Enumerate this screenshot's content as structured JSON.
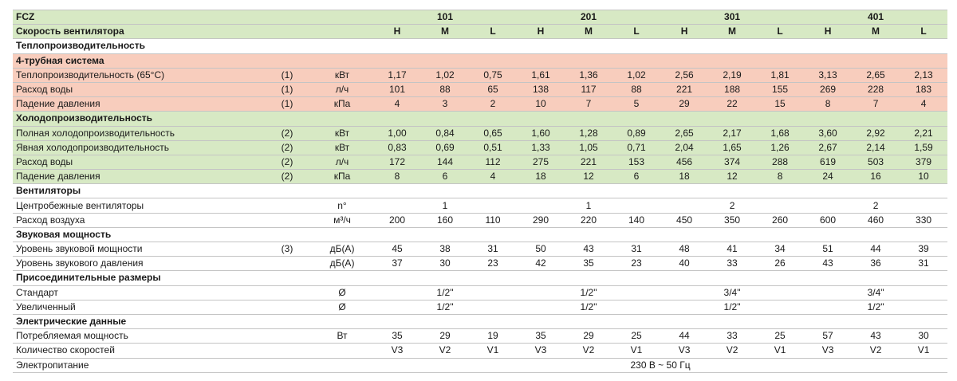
{
  "header": {
    "title": "FCZ",
    "models": [
      "101",
      "201",
      "301",
      "401"
    ],
    "speed_label": "Скорость вентилятора",
    "speeds": [
      "H",
      "M",
      "L",
      "H",
      "M",
      "L",
      "H",
      "M",
      "L",
      "H",
      "M",
      "L"
    ],
    "color": "#d7e9c4"
  },
  "rows": [
    {
      "section": "Теплопроизводительность"
    },
    {
      "section": "4-трубная система",
      "color": "#f8cdbd"
    },
    {
      "label": "Теплопроизводительность (65°C)",
      "note": "(1)",
      "unit": "кВт",
      "values": [
        "1,17",
        "1,02",
        "0,75",
        "1,61",
        "1,36",
        "1,02",
        "2,56",
        "2,19",
        "1,81",
        "3,13",
        "2,65",
        "2,13"
      ],
      "color": "#f8cdbd"
    },
    {
      "label": "Расход воды",
      "note": "(1)",
      "unit": "л/ч",
      "values": [
        101,
        88,
        65,
        138,
        117,
        88,
        221,
        188,
        155,
        269,
        228,
        183
      ],
      "color": "#f8cdbd"
    },
    {
      "label": "Падение давления",
      "note": "(1)",
      "unit": "кПа",
      "values": [
        4,
        3,
        2,
        10,
        7,
        5,
        29,
        22,
        15,
        8,
        7,
        4
      ],
      "color": "#f8cdbd"
    },
    {
      "section": "Холодопроизводительность",
      "color": "#d7e9c4"
    },
    {
      "label": "Полная холодопроизводительность",
      "note": "(2)",
      "unit": "кВт",
      "values": [
        "1,00",
        "0,84",
        "0,65",
        "1,60",
        "1,28",
        "0,89",
        "2,65",
        "2,17",
        "1,68",
        "3,60",
        "2,92",
        "2,21"
      ],
      "color": "#d7e9c4"
    },
    {
      "label": "Явная холодопроизводительность",
      "note": "(2)",
      "unit": "кВт",
      "values": [
        "0,83",
        "0,69",
        "0,51",
        "1,33",
        "1,05",
        "0,71",
        "2,04",
        "1,65",
        "1,26",
        "2,67",
        "2,14",
        "1,59"
      ],
      "color": "#d7e9c4"
    },
    {
      "label": "Расход воды",
      "note": "(2)",
      "unit": "л/ч",
      "values": [
        172,
        144,
        112,
        275,
        221,
        153,
        456,
        374,
        288,
        619,
        503,
        379
      ],
      "color": "#d7e9c4"
    },
    {
      "label": "Падение давления",
      "note": "(2)",
      "unit": "кПа",
      "values": [
        8,
        6,
        4,
        18,
        12,
        6,
        18,
        12,
        8,
        24,
        16,
        10
      ],
      "color": "#d7e9c4"
    },
    {
      "section": "Вентиляторы"
    },
    {
      "label": "Центробежные вентиляторы",
      "unit": "n°",
      "values": [
        null,
        1,
        null,
        null,
        1,
        null,
        null,
        2,
        null,
        null,
        2,
        null
      ]
    },
    {
      "label": "Расход воздуха",
      "unit": "м³/ч",
      "values": [
        200,
        160,
        110,
        290,
        220,
        140,
        450,
        350,
        260,
        600,
        460,
        330
      ]
    },
    {
      "section": "Звуковая мощность"
    },
    {
      "label": "Уровень звуковой мощности",
      "note": "(3)",
      "unit": "дБ(A)",
      "values": [
        45,
        38,
        31,
        50,
        43,
        31,
        48,
        41,
        34,
        51,
        44,
        39
      ]
    },
    {
      "label": "Уровень звукового давления",
      "unit": "дБ(A)",
      "values": [
        37,
        30,
        23,
        42,
        35,
        23,
        40,
        33,
        26,
        43,
        36,
        31
      ]
    },
    {
      "section": "Присоединительные размеры"
    },
    {
      "label": "Стандарт",
      "unit": "Ø",
      "values": [
        null,
        "1/2\"",
        null,
        null,
        "1/2\"",
        null,
        null,
        "3/4\"",
        null,
        null,
        "3/4\"",
        null
      ]
    },
    {
      "label": "Увеличенный",
      "unit": "Ø",
      "values": [
        null,
        "1/2\"",
        null,
        null,
        "1/2\"",
        null,
        null,
        "1/2\"",
        null,
        null,
        "1/2\"",
        null
      ]
    },
    {
      "section": "Электрические данные"
    },
    {
      "label": "Потребляемая мощность",
      "unit": "Вт",
      "values": [
        35,
        29,
        19,
        35,
        29,
        25,
        44,
        33,
        25,
        57,
        43,
        30
      ]
    },
    {
      "label": "Количество скоростей",
      "values": [
        "V3",
        "V2",
        "V1",
        "V3",
        "V2",
        "V1",
        "V3",
        "V2",
        "V1",
        "V3",
        "V2",
        "V1"
      ]
    },
    {
      "label": "Электропитание",
      "value": "230 В ~ 50 Гц"
    }
  ]
}
